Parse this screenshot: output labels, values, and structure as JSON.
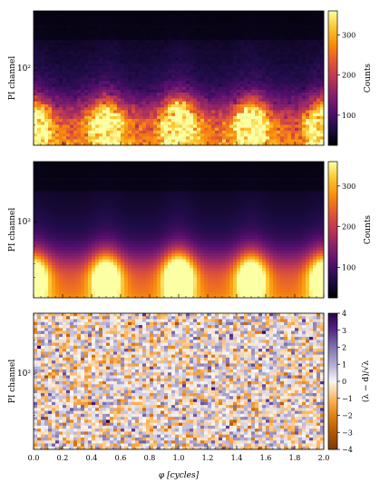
{
  "chart_data": [
    {
      "type": "heatmap",
      "panel": "data",
      "ylabel": "PI channel",
      "ytick_labels": [
        "10²"
      ],
      "xlim": [
        0.0,
        2.0
      ],
      "colorbar": {
        "label": "Counts",
        "colormap": "inferno",
        "range": [
          25,
          360
        ],
        "ticks": [
          100,
          200,
          300
        ]
      },
      "pulse_peaks_phase": [
        0.0,
        0.5,
        1.0,
        1.5,
        2.0
      ],
      "brightest_peak_phase": 1.0,
      "noisy": true
    },
    {
      "type": "heatmap",
      "panel": "model",
      "ylabel": "PI channel",
      "ytick_labels": [
        "10²"
      ],
      "xlim": [
        0.0,
        2.0
      ],
      "colorbar": {
        "label": "Counts",
        "colormap": "inferno",
        "range": [
          25,
          360
        ],
        "ticks": [
          100,
          200,
          300
        ]
      },
      "pulse_peaks_phase": [
        0.0,
        0.5,
        1.0,
        1.5,
        2.0
      ],
      "brightest_peak_phase": 1.0,
      "noisy": false
    },
    {
      "type": "heatmap",
      "panel": "residuals",
      "ylabel": "PI channel",
      "ytick_labels": [
        "10²"
      ],
      "xlabel": "φ [cycles]",
      "xlim": [
        0.0,
        2.0
      ],
      "xticks": [
        "0.0",
        "0.2",
        "0.4",
        "0.6",
        "0.8",
        "1.0",
        "1.2",
        "1.4",
        "1.6",
        "1.8",
        "2.0"
      ],
      "colorbar": {
        "label": "(λ − d)/√λ",
        "colormap": "PuOr",
        "range": [
          -4,
          4
        ],
        "ticks": [
          -4,
          -3,
          -2,
          -1,
          0,
          1,
          2,
          3,
          4
        ]
      }
    }
  ]
}
